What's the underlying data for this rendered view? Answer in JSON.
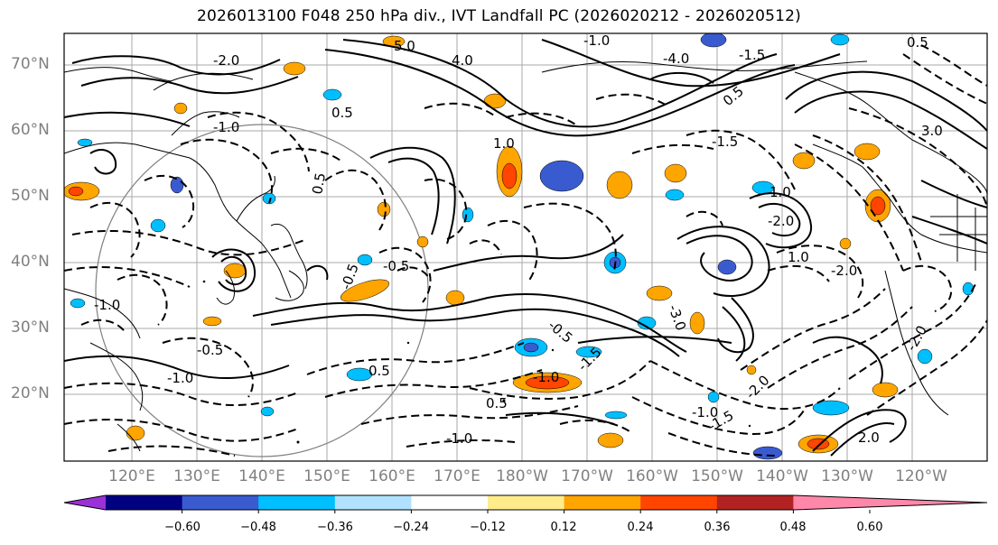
{
  "title": "2026013100 F048 250 hPa div., IVT Landfall PC (2026020212 - 2026020512)",
  "lat_labels": [
    "70°N",
    "60°N",
    "50°N",
    "40°N",
    "30°N",
    "20°N"
  ],
  "lon_labels": [
    "120°E",
    "130°E",
    "140°E",
    "150°E",
    "160°E",
    "170°E",
    "180°W",
    "170°W",
    "160°W",
    "150°W",
    "140°W",
    "130°W",
    "120°W"
  ],
  "colorbar": {
    "ticks": [
      "−0.60",
      "−0.48",
      "−0.36",
      "−0.24",
      "−0.12",
      "0.12",
      "0.24",
      "0.36",
      "0.48",
      "0.60"
    ],
    "colors": [
      "#9b30d9",
      "#000080",
      "#3a5bd0",
      "#00bfff",
      "#b0e2ff",
      "#ffffff",
      "#ffec8b",
      "#ffa500",
      "#ff4500",
      "#b22222",
      "#ff88aa"
    ]
  },
  "contour_labels": [
    {
      "text": "0.5"
    },
    {
      "text": "-1.0"
    },
    {
      "text": "0.5"
    },
    {
      "text": "-0.5"
    },
    {
      "text": "1.0"
    },
    {
      "text": "-0.5"
    },
    {
      "text": "-1.0"
    },
    {
      "text": "-0.5"
    },
    {
      "text": "0.5"
    },
    {
      "text": "-1.0"
    },
    {
      "text": "-1.0"
    },
    {
      "text": "-1.5"
    },
    {
      "text": "-1.0"
    },
    {
      "text": "0.5"
    },
    {
      "text": "-2.0"
    },
    {
      "text": "-1.5"
    },
    {
      "text": "-1.0"
    },
    {
      "text": "-2.0"
    },
    {
      "text": "1.0"
    },
    {
      "text": "-2.0"
    },
    {
      "text": "1.0"
    },
    {
      "text": "-1.5"
    },
    {
      "text": "0.5"
    },
    {
      "text": "-0.5"
    },
    {
      "text": "2.0"
    },
    {
      "text": "-2.0"
    },
    {
      "text": "4.0"
    },
    {
      "text": "5.0"
    },
    {
      "text": "-4.0"
    },
    {
      "text": "-1.0"
    },
    {
      "text": "-1.5"
    },
    {
      "text": "3.0"
    },
    {
      "text": "0.5"
    },
    {
      "text": "-2.0"
    },
    {
      "text": "-3.0"
    }
  ]
}
